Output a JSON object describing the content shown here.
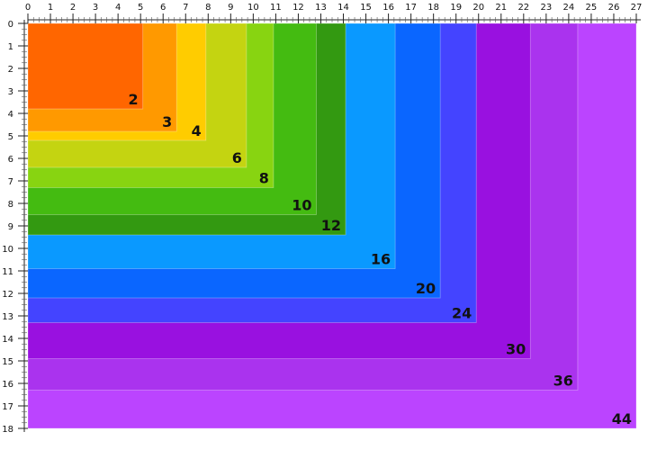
{
  "x_ticks": [
    "0",
    "1",
    "2",
    "3",
    "4",
    "5",
    "6",
    "7",
    "8",
    "9",
    "10",
    "11",
    "12",
    "13",
    "14",
    "15",
    "16",
    "17",
    "18",
    "19",
    "20",
    "21",
    "22",
    "23",
    "24",
    "25",
    "26",
    "27"
  ],
  "y_ticks": [
    "0",
    "1",
    "2",
    "3",
    "4",
    "5",
    "6",
    "7",
    "8",
    "9",
    "10",
    "11",
    "12",
    "13",
    "14",
    "15",
    "16",
    "17",
    "18"
  ],
  "rectangles": [
    {
      "label": "44",
      "width": 27.0,
      "height": 18.0,
      "color": "#bb44ff"
    },
    {
      "label": "36",
      "width": 24.4,
      "height": 16.3,
      "color": "#aa33ee"
    },
    {
      "label": "30",
      "width": 22.3,
      "height": 14.9,
      "color": "#9911e0"
    },
    {
      "label": "24",
      "width": 19.9,
      "height": 13.3,
      "color": "#4444ff"
    },
    {
      "label": "20",
      "width": 18.3,
      "height": 12.2,
      "color": "#0a66ff"
    },
    {
      "label": "16",
      "width": 16.3,
      "height": 10.9,
      "color": "#0a99ff"
    },
    {
      "label": "12",
      "width": 14.1,
      "height": 9.4,
      "color": "#339911"
    },
    {
      "label": "10",
      "width": 12.8,
      "height": 8.5,
      "color": "#44bb11"
    },
    {
      "label": "8",
      "width": 10.9,
      "height": 7.3,
      "color": "#88d411"
    },
    {
      "label": "6",
      "width": 9.7,
      "height": 6.4,
      "color": "#c4d411"
    },
    {
      "label": "4",
      "width": 7.9,
      "height": 5.2,
      "color": "#ffcc00"
    },
    {
      "label": "3",
      "width": 6.6,
      "height": 4.8,
      "color": "#ff9900"
    },
    {
      "label": "2",
      "width": 5.1,
      "height": 3.8,
      "color": "#ff6600"
    }
  ]
}
